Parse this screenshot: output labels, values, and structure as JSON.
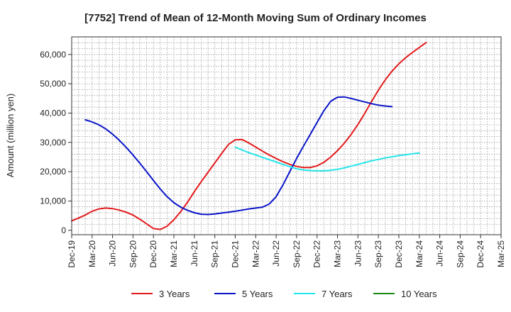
{
  "chart_data": {
    "type": "line",
    "title": "[7752]  Trend of Mean of 12-Month Moving Sum of Ordinary Incomes",
    "xlabel": "",
    "ylabel": "Amount (million yen)",
    "ylim": [
      -1500,
      66000
    ],
    "yticks": [
      0,
      10000,
      20000,
      30000,
      40000,
      50000,
      60000
    ],
    "ytick_labels": [
      "0",
      "10,000",
      "20,000",
      "30,000",
      "40,000",
      "50,000",
      "60,000"
    ],
    "x_range": [
      0,
      63
    ],
    "x_ticks": [
      0,
      3,
      6,
      9,
      12,
      15,
      18,
      21,
      24,
      27,
      30,
      33,
      36,
      39,
      42,
      45,
      48,
      51,
      54,
      57,
      60,
      63
    ],
    "x_tick_labels": [
      "Dec-19",
      "Mar-20",
      "Jun-20",
      "Sep-20",
      "Dec-20",
      "Mar-21",
      "Jun-21",
      "Sep-21",
      "Dec-21",
      "Mar-22",
      "Jun-22",
      "Sep-22",
      "Dec-22",
      "Mar-23",
      "Jun-23",
      "Sep-23",
      "Dec-23",
      "Mar-24",
      "Jun-24",
      "Sep-24",
      "Dec-24",
      "Mar-25"
    ],
    "grid": true,
    "legend_position": "bottom",
    "series": [
      {
        "name": "3 Years",
        "color": "#e31a1c",
        "points": [
          [
            0,
            3200
          ],
          [
            2,
            5200
          ],
          [
            3,
            6500
          ],
          [
            4,
            7300
          ],
          [
            5,
            7600
          ],
          [
            6,
            7400
          ],
          [
            7,
            6900
          ],
          [
            8,
            6200
          ],
          [
            9,
            5200
          ],
          [
            10,
            3800
          ],
          [
            11,
            2200
          ],
          [
            12,
            600
          ],
          [
            13,
            300
          ],
          [
            14,
            1400
          ],
          [
            15,
            3600
          ],
          [
            16,
            6400
          ],
          [
            17,
            9600
          ],
          [
            18,
            13200
          ],
          [
            19,
            16600
          ],
          [
            20,
            19800
          ],
          [
            21,
            23000
          ],
          [
            22,
            26200
          ],
          [
            23,
            29300
          ],
          [
            24,
            30900
          ],
          [
            25,
            31000
          ],
          [
            26,
            29800
          ],
          [
            27,
            28400
          ],
          [
            28,
            27000
          ],
          [
            29,
            25700
          ],
          [
            30,
            24500
          ],
          [
            31,
            23400
          ],
          [
            32,
            22500
          ],
          [
            33,
            21800
          ],
          [
            34,
            21400
          ],
          [
            35,
            21400
          ],
          [
            36,
            22000
          ],
          [
            37,
            23200
          ],
          [
            38,
            25000
          ],
          [
            39,
            27200
          ],
          [
            40,
            29700
          ],
          [
            41,
            32700
          ],
          [
            42,
            36100
          ],
          [
            43,
            39900
          ],
          [
            44,
            43900
          ],
          [
            45,
            47800
          ],
          [
            46,
            51300
          ],
          [
            47,
            54300
          ],
          [
            48,
            56800
          ],
          [
            49,
            58900
          ],
          [
            50,
            60700
          ],
          [
            51,
            62400
          ],
          [
            52,
            64100
          ]
        ]
      },
      {
        "name": "5 Years",
        "color": "#0a14c8",
        "points": [
          [
            2,
            37700
          ],
          [
            3,
            37000
          ],
          [
            4,
            36000
          ],
          [
            5,
            34600
          ],
          [
            6,
            32800
          ],
          [
            7,
            30700
          ],
          [
            8,
            28300
          ],
          [
            9,
            25700
          ],
          [
            10,
            22900
          ],
          [
            11,
            20000
          ],
          [
            12,
            17000
          ],
          [
            13,
            14100
          ],
          [
            14,
            11500
          ],
          [
            15,
            9400
          ],
          [
            16,
            7900
          ],
          [
            17,
            6800
          ],
          [
            18,
            6000
          ],
          [
            19,
            5500
          ],
          [
            20,
            5400
          ],
          [
            21,
            5600
          ],
          [
            22,
            5900
          ],
          [
            23,
            6200
          ],
          [
            24,
            6500
          ],
          [
            25,
            6900
          ],
          [
            26,
            7300
          ],
          [
            27,
            7600
          ],
          [
            28,
            7900
          ],
          [
            29,
            9000
          ],
          [
            30,
            11500
          ],
          [
            31,
            15500
          ],
          [
            32,
            20000
          ],
          [
            33,
            24500
          ],
          [
            34,
            28700
          ],
          [
            35,
            32700
          ],
          [
            36,
            36800
          ],
          [
            37,
            40800
          ],
          [
            38,
            44000
          ],
          [
            39,
            45400
          ],
          [
            40,
            45500
          ],
          [
            41,
            45000
          ],
          [
            42,
            44400
          ],
          [
            43,
            43800
          ],
          [
            44,
            43200
          ],
          [
            45,
            42700
          ],
          [
            46,
            42400
          ],
          [
            47,
            42200
          ]
        ]
      },
      {
        "name": "7 Years",
        "color": "#22e5ea",
        "points": [
          [
            24,
            28400
          ],
          [
            25,
            27400
          ],
          [
            26,
            26500
          ],
          [
            27,
            25700
          ],
          [
            28,
            24900
          ],
          [
            29,
            24100
          ],
          [
            30,
            23300
          ],
          [
            31,
            22500
          ],
          [
            32,
            21700
          ],
          [
            33,
            21000
          ],
          [
            34,
            20600
          ],
          [
            35,
            20400
          ],
          [
            36,
            20300
          ],
          [
            37,
            20300
          ],
          [
            38,
            20500
          ],
          [
            39,
            20800
          ],
          [
            40,
            21300
          ],
          [
            41,
            21900
          ],
          [
            42,
            22500
          ],
          [
            43,
            23100
          ],
          [
            44,
            23700
          ],
          [
            45,
            24200
          ],
          [
            46,
            24700
          ],
          [
            47,
            25100
          ],
          [
            48,
            25500
          ],
          [
            49,
            25800
          ],
          [
            50,
            26100
          ],
          [
            51,
            26400
          ]
        ]
      },
      {
        "name": "10 Years",
        "color": "#1a8a1a",
        "points": []
      }
    ]
  }
}
